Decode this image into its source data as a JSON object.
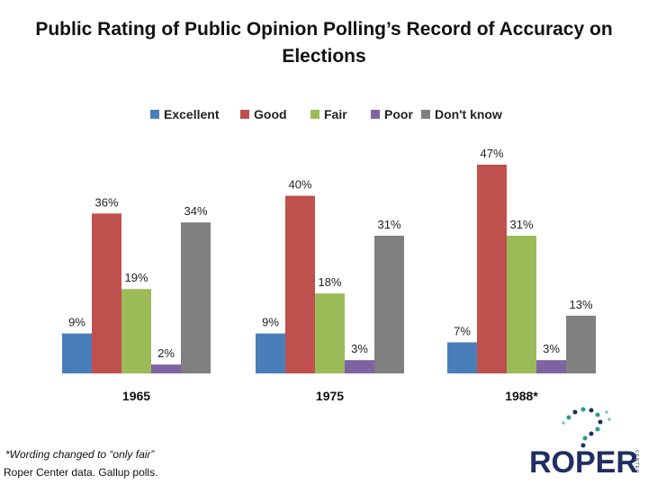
{
  "chart_data": {
    "type": "bar",
    "title": "Public Rating of Public Opinion Polling’s Record of Accuracy on Elections",
    "categories": [
      "1965",
      "1975",
      "1988*"
    ],
    "series": [
      {
        "name": "Excellent",
        "color": "#4a7ebb",
        "values": [
          9,
          9,
          7
        ],
        "labels": [
          "9%",
          "9%",
          "7%"
        ]
      },
      {
        "name": "Good",
        "color": "#c0504d",
        "values": [
          36,
          40,
          47
        ],
        "labels": [
          "36%",
          "40%",
          "47%"
        ]
      },
      {
        "name": "Fair",
        "color": "#9bbb59",
        "values": [
          19,
          18,
          31
        ],
        "labels": [
          "19%",
          "18%",
          "31%"
        ]
      },
      {
        "name": "Poor",
        "color": "#8064a2",
        "values": [
          2,
          3,
          3
        ],
        "labels": [
          "2%",
          "3%",
          "3%"
        ]
      },
      {
        "name": "Don't know",
        "color": "#7f7f7f",
        "values": [
          34,
          31,
          13
        ],
        "labels": [
          "34%",
          "31%",
          "13%"
        ]
      }
    ],
    "ylim": [
      0,
      50
    ],
    "grid": false,
    "legend_position": "top"
  },
  "footnote": "*Wording changed to “only fair”",
  "source": "Roper Center data. Gallup polls.",
  "logo": {
    "text": "ROPER",
    "side_text": "CENTER",
    "color": "#1f2f62",
    "accent": "#2a9a8a"
  }
}
